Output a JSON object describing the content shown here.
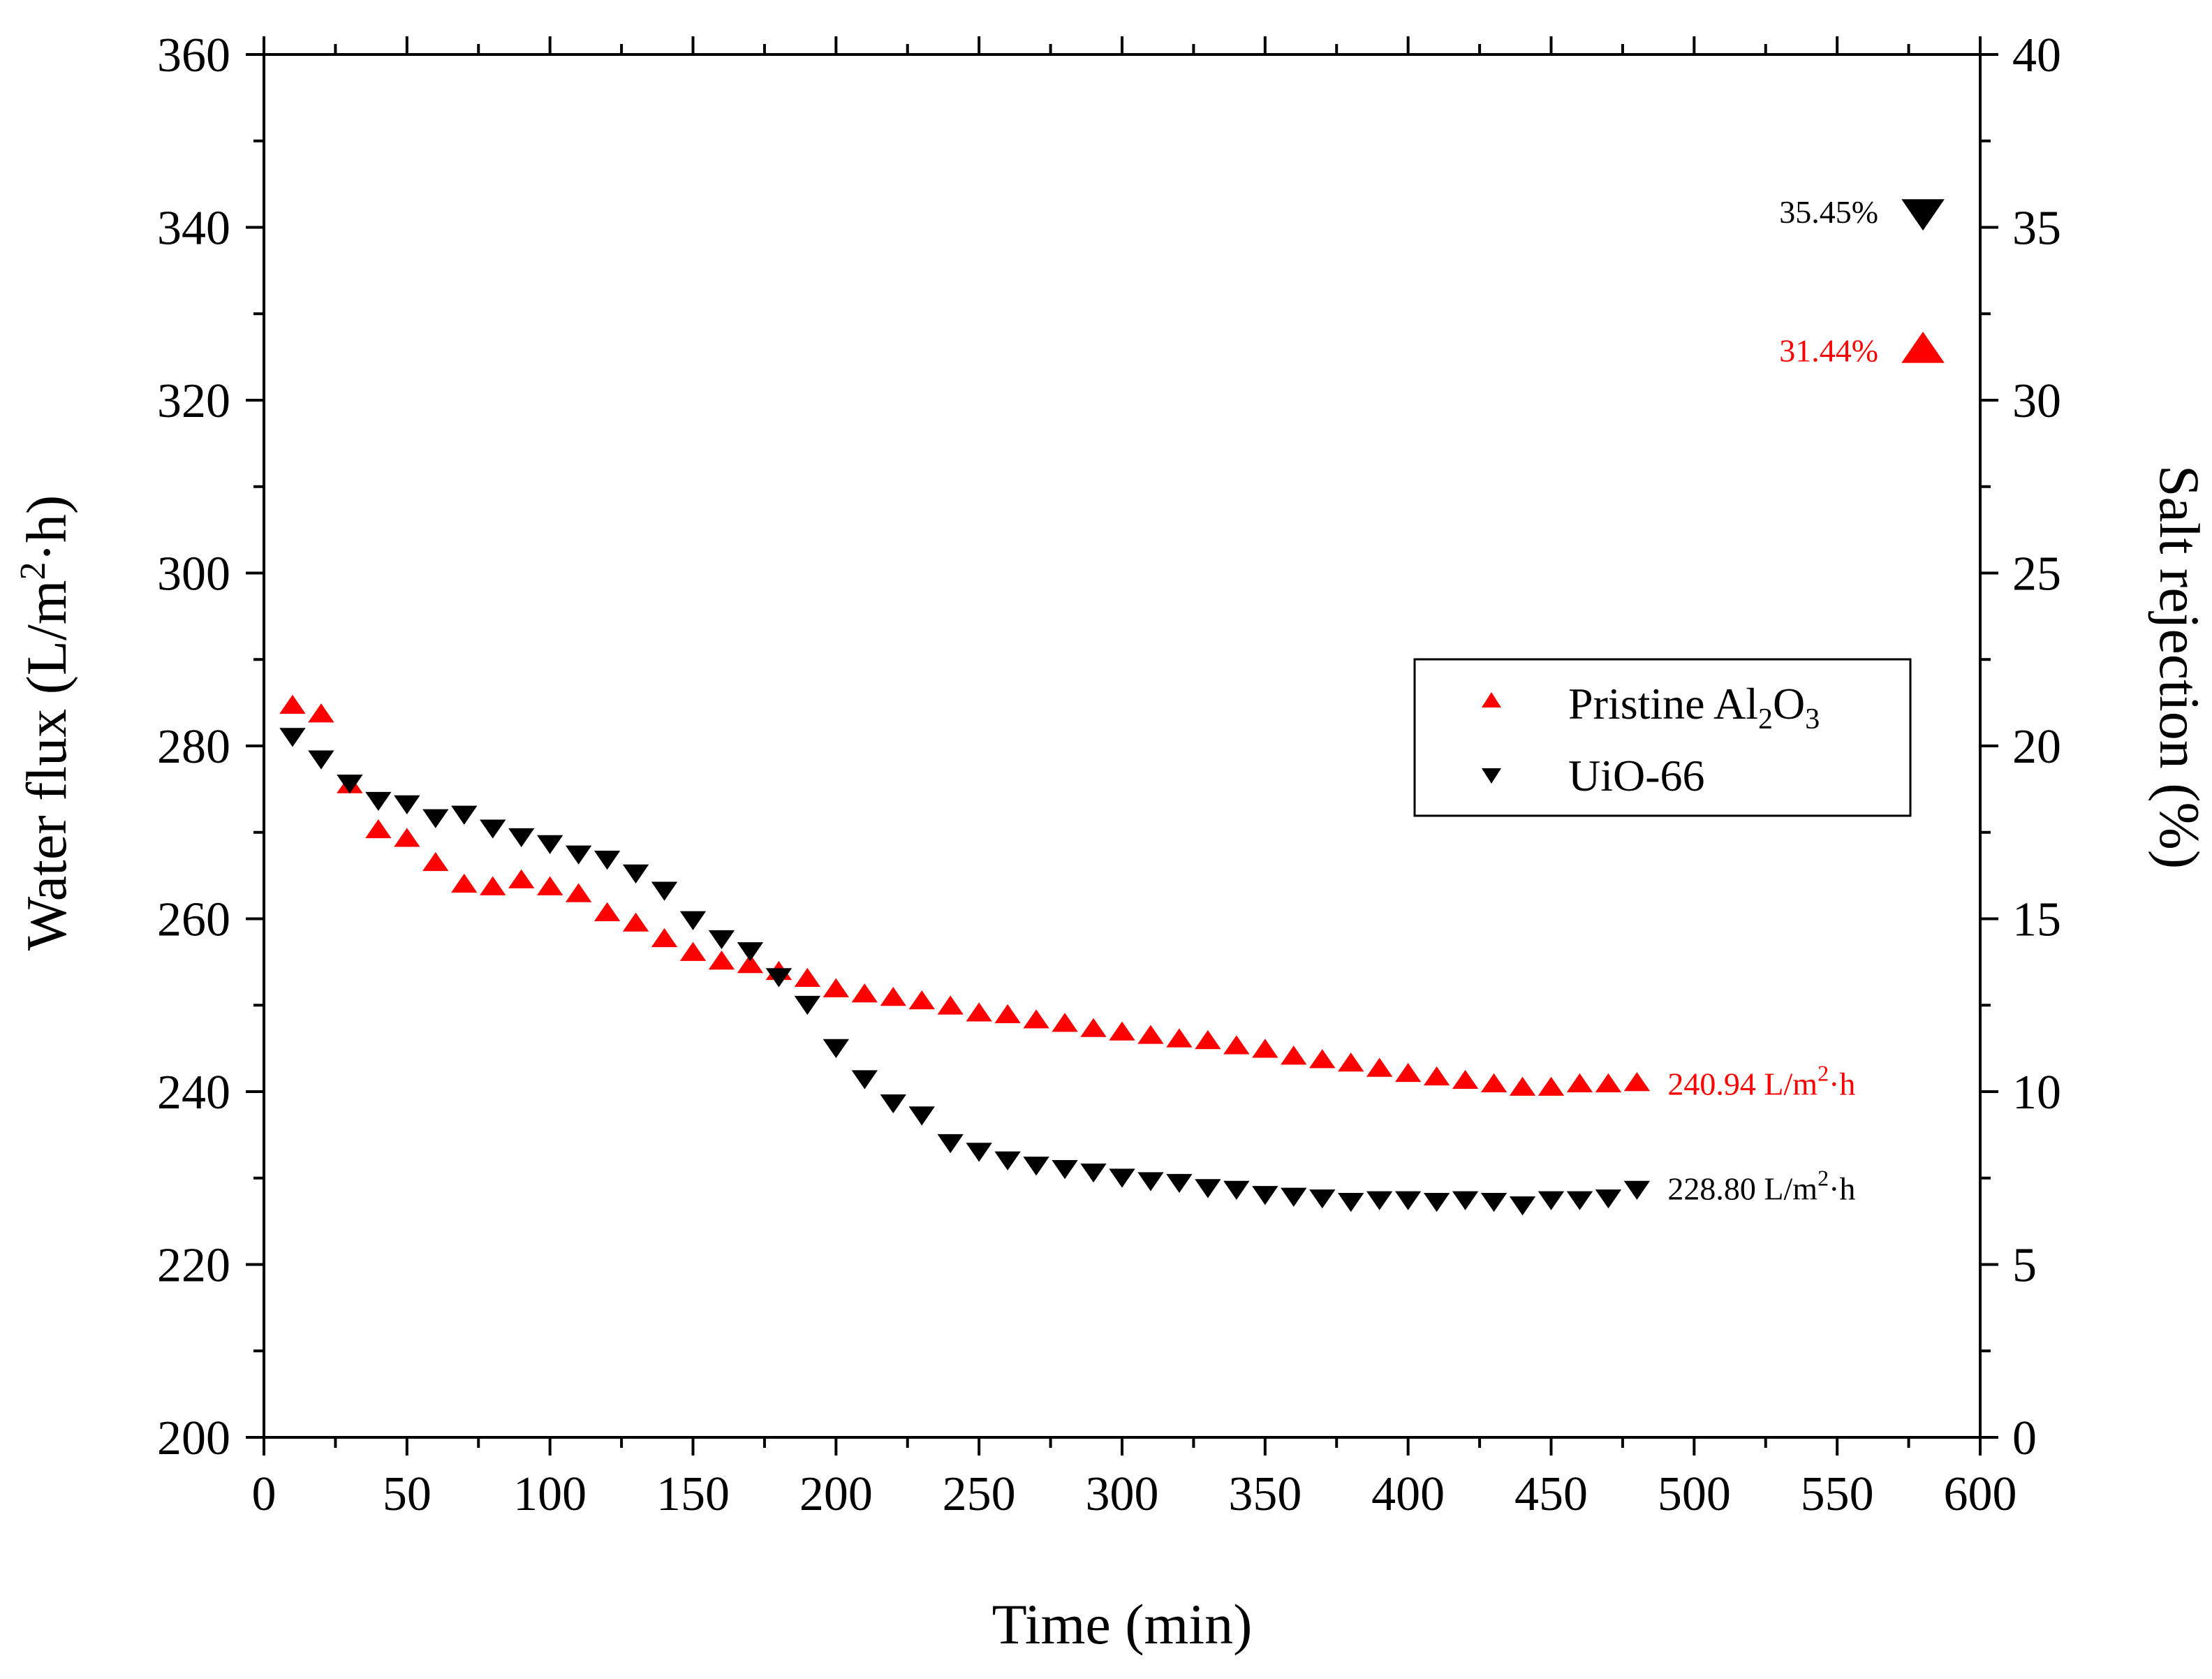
{
  "chart_data": {
    "type": "scatter",
    "title": "",
    "xlabel": "Time (min)",
    "ylabel_left": {
      "pre": "Water flux (L/m",
      "sup": "2",
      "post": "·h)"
    },
    "ylabel_right": "Salt rejection (%)",
    "xlim": [
      0,
      600
    ],
    "ylim_left": [
      200,
      360
    ],
    "ylim_right": [
      0,
      40
    ],
    "x_ticks": [
      0,
      50,
      100,
      150,
      200,
      250,
      300,
      350,
      400,
      450,
      500,
      550,
      600
    ],
    "y_left_ticks": [
      200,
      220,
      240,
      260,
      280,
      300,
      320,
      340,
      360
    ],
    "y_right_ticks": [
      0,
      5,
      10,
      15,
      20,
      25,
      30,
      35,
      40
    ],
    "grid": false,
    "legend_position": "middle-right",
    "colors": {
      "pristine": "#ff0000",
      "uio66": "#000000",
      "axis": "#000000"
    },
    "series": [
      {
        "name": "Pristine Al2O3",
        "legend_label": {
          "pre": "Pristine Al",
          "sub1": "2",
          "mid": "O",
          "sub2": "3"
        },
        "marker": "triangle-up",
        "color": "#ff0000",
        "axis": "left",
        "x": [
          10,
          20,
          30,
          40,
          50,
          60,
          70,
          80,
          90,
          100,
          110,
          120,
          130,
          140,
          150,
          160,
          170,
          180,
          190,
          200,
          210,
          220,
          230,
          240,
          250,
          260,
          270,
          280,
          290,
          300,
          310,
          320,
          330,
          340,
          350,
          360,
          370,
          380,
          390,
          400,
          410,
          420,
          430,
          440,
          450,
          460,
          470,
          480
        ],
        "y": [
          284.6,
          283.6,
          275.4,
          270.2,
          269.2,
          266.4,
          263.9,
          263.6,
          264.4,
          263.6,
          262.8,
          260.6,
          259.4,
          257.6,
          256.0,
          255.0,
          254.6,
          253.8,
          253.0,
          251.8,
          251.2,
          250.8,
          250.4,
          249.8,
          249.0,
          248.8,
          248.2,
          247.8,
          247.2,
          246.8,
          246.4,
          246.0,
          245.8,
          245.2,
          244.8,
          244.0,
          243.6,
          243.2,
          242.6,
          242.0,
          241.6,
          241.2,
          240.8,
          240.4,
          240.4,
          240.8,
          240.8,
          240.94
        ]
      },
      {
        "name": "UiO-66",
        "legend_label": {
          "pre": "UiO-66"
        },
        "marker": "triangle-down",
        "color": "#000000",
        "axis": "left",
        "x": [
          10,
          20,
          30,
          40,
          50,
          60,
          70,
          80,
          90,
          100,
          110,
          120,
          130,
          140,
          150,
          160,
          170,
          180,
          190,
          200,
          210,
          220,
          230,
          240,
          250,
          260,
          270,
          280,
          290,
          300,
          310,
          320,
          330,
          340,
          350,
          360,
          370,
          380,
          390,
          400,
          410,
          420,
          430,
          440,
          450,
          460,
          470,
          480
        ],
        "y": [
          281.2,
          278.6,
          275.8,
          273.8,
          273.4,
          271.8,
          272.2,
          270.6,
          269.6,
          268.8,
          267.6,
          267.0,
          265.4,
          263.4,
          260.0,
          257.8,
          256.4,
          253.4,
          250.2,
          245.2,
          241.6,
          238.8,
          237.4,
          234.2,
          233.2,
          232.2,
          231.6,
          231.2,
          230.8,
          230.2,
          229.8,
          229.6,
          229.0,
          228.8,
          228.2,
          228.0,
          227.8,
          227.4,
          227.6,
          227.6,
          227.4,
          227.6,
          227.4,
          227.0,
          227.6,
          227.6,
          227.8,
          228.8
        ]
      }
    ],
    "rejection_points": [
      {
        "x": 580,
        "y": 35.45,
        "label": "35.45%",
        "marker": "triangle-down",
        "color": "#000000",
        "axis": "right"
      },
      {
        "x": 580,
        "y": 31.44,
        "label": "31.44%",
        "marker": "triangle-up",
        "color": "#ff0000",
        "axis": "right"
      }
    ],
    "flux_annotations": [
      {
        "value_text": "240.94 L/m",
        "sup": "2",
        "tail": "·h",
        "anchor_x": 480,
        "anchor_y": 240.94,
        "color": "#ff0000"
      },
      {
        "value_text": "228.80 L/m",
        "sup": "2",
        "tail": "·h",
        "anchor_x": 480,
        "anchor_y": 228.8,
        "color": "#000000"
      }
    ]
  }
}
